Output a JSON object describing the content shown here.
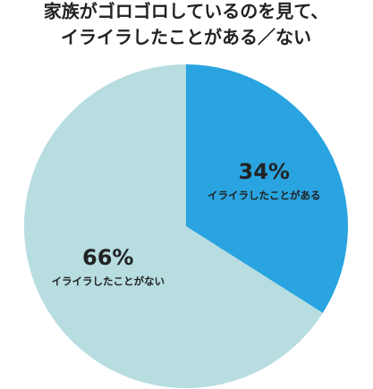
{
  "chart_data": {
    "type": "pie",
    "title": [
      "家族がゴロゴロしているのを見て、",
      "イライラしたことがある／ない"
    ],
    "categories": [
      "イライラしたことがある",
      "イライラしたことがない"
    ],
    "values": [
      34,
      66
    ],
    "value_labels": [
      "34%",
      "66%"
    ],
    "colors": [
      "#29a4e0",
      "#b7dde1"
    ]
  }
}
